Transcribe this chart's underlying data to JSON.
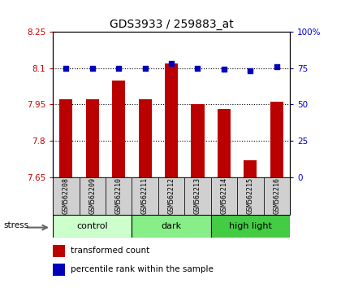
{
  "title": "GDS3933 / 259883_at",
  "samples": [
    "GSM562208",
    "GSM562209",
    "GSM562210",
    "GSM562211",
    "GSM562212",
    "GSM562213",
    "GSM562214",
    "GSM562215",
    "GSM562216"
  ],
  "bar_values": [
    7.97,
    7.97,
    8.05,
    7.97,
    8.12,
    7.95,
    7.93,
    7.72,
    7.96
  ],
  "dot_values": [
    75,
    75,
    75,
    75,
    78,
    75,
    74,
    73,
    76
  ],
  "ylim_left": [
    7.65,
    8.25
  ],
  "ylim_right": [
    0,
    100
  ],
  "yticks_left": [
    7.65,
    7.8,
    7.95,
    8.1,
    8.25
  ],
  "yticks_right": [
    0,
    25,
    50,
    75,
    100
  ],
  "ytick_labels_left": [
    "7.65",
    "7.8",
    "7.95",
    "8.1",
    "8.25"
  ],
  "ytick_labels_right": [
    "0",
    "25",
    "50",
    "75",
    "100%"
  ],
  "hlines": [
    7.8,
    7.95,
    8.1
  ],
  "bar_color": "#bb0000",
  "dot_color": "#0000bb",
  "groups": [
    {
      "label": "control",
      "start": 0,
      "end": 3,
      "color": "#ccffcc"
    },
    {
      "label": "dark",
      "start": 3,
      "end": 6,
      "color": "#88ee88"
    },
    {
      "label": "high light",
      "start": 6,
      "end": 9,
      "color": "#44cc44"
    }
  ],
  "stress_label": "stress",
  "legend_bar_label": "transformed count",
  "legend_dot_label": "percentile rank within the sample",
  "tick_label_color_left": "#cc0000",
  "tick_label_color_right": "#0000cc",
  "bar_width": 0.5,
  "sample_bg": "#d0d0d0"
}
